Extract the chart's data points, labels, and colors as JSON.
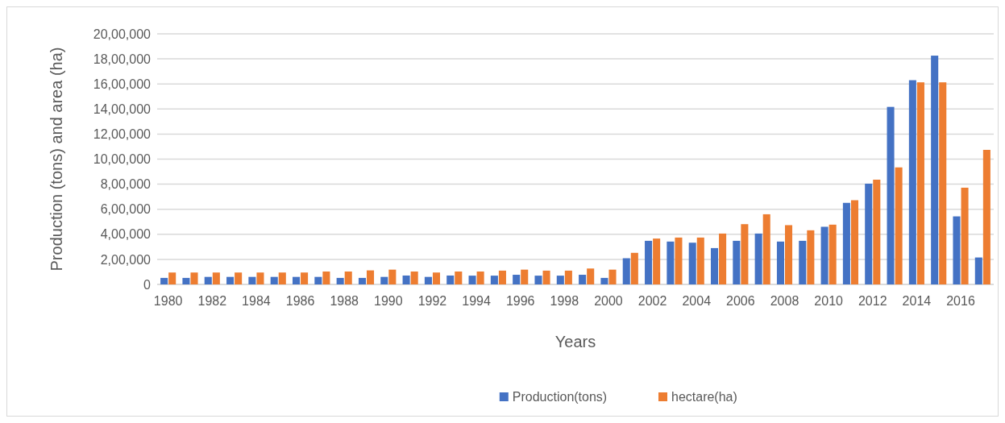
{
  "chart_data": {
    "type": "bar",
    "xlabel": "Years",
    "ylabel": "Production (tons) and area (ha)",
    "categories": [
      "1980",
      null,
      "1982",
      null,
      "1984",
      null,
      "1986",
      null,
      "1988",
      null,
      "1990",
      null,
      "1992",
      null,
      "1994",
      null,
      "1996",
      null,
      "1998",
      null,
      "2000",
      null,
      "2002",
      null,
      "2004",
      null,
      "2006",
      null,
      "2008",
      null,
      "2010",
      null,
      "2012",
      null,
      "2014",
      null,
      "2016",
      null
    ],
    "series": [
      {
        "name": "Production(tons)",
        "color": "#4472c4",
        "values": [
          52000,
          52000,
          60000,
          60000,
          60000,
          60000,
          60000,
          60000,
          52000,
          52000,
          60000,
          71000,
          60000,
          71000,
          70000,
          70000,
          77000,
          70000,
          70000,
          77000,
          52000,
          209000,
          348000,
          342000,
          333000,
          290000,
          348000,
          406000,
          342000,
          348000,
          460000,
          651000,
          804000,
          1417000,
          1630000,
          1826000,
          543000,
          215000
        ]
      },
      {
        "name": "hectare(ha)",
        "color": "#ed7d31",
        "values": [
          95000,
          95000,
          95000,
          95000,
          95000,
          95000,
          95000,
          103000,
          103000,
          112000,
          118000,
          103000,
          95000,
          103000,
          103000,
          110000,
          118000,
          110000,
          110000,
          127000,
          118000,
          252000,
          366000,
          374000,
          374000,
          406000,
          481000,
          560000,
          473000,
          432000,
          477000,
          672000,
          836000,
          934000,
          1613000,
          1613000,
          772000,
          1074000
        ]
      }
    ],
    "ylim": [
      0,
      2000000
    ],
    "yticks": [
      0,
      {
        "value": 200000,
        "label": "2,00,000"
      },
      {
        "value": 400000,
        "label": "4,00,000"
      },
      {
        "value": 600000,
        "label": "6,00,000"
      },
      {
        "value": 800000,
        "label": "8,00,000"
      },
      {
        "value": 1000000,
        "label": "10,00,000"
      },
      {
        "value": 1200000,
        "label": "12,00,000"
      },
      {
        "value": 1400000,
        "label": "14,00,000"
      },
      {
        "value": 1600000,
        "label": "16,00,000"
      },
      {
        "value": 1800000,
        "label": "18,00,000"
      },
      {
        "value": 2000000,
        "label": "20,00,000"
      }
    ],
    "grid": "y",
    "legend": "bottom"
  }
}
